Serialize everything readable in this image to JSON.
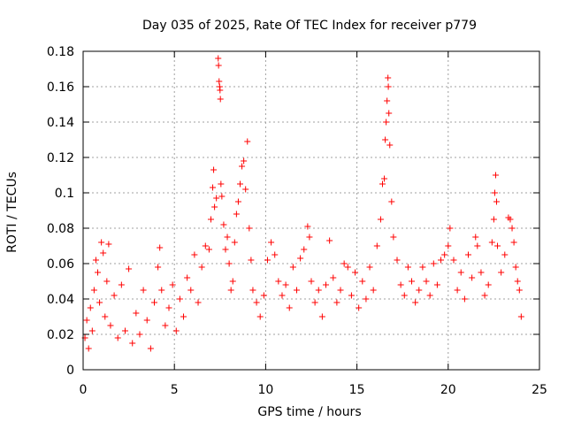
{
  "chart_data": {
    "type": "scatter",
    "title": "Day 035 of 2025, Rate Of TEC Index for receiver p779",
    "xlabel": "GPS time / hours",
    "ylabel": "ROTI / TECUs",
    "xlim": [
      0,
      25
    ],
    "ylim": [
      0,
      0.18
    ],
    "x_ticks": [
      0,
      5,
      10,
      15,
      20,
      25
    ],
    "x_tick_labels": [
      "0",
      "5",
      "10",
      "15",
      "20",
      "25"
    ],
    "y_ticks": [
      0,
      0.02,
      0.04,
      0.06,
      0.08,
      0.1,
      0.12,
      0.14,
      0.16,
      0.18
    ],
    "y_tick_labels": [
      "0",
      "0.02",
      "0.04",
      "0.06",
      "0.08",
      "0.1",
      "0.12",
      "0.14",
      "0.16",
      "0.18"
    ],
    "grid": true,
    "marker": "+",
    "marker_color": "#ff0000",
    "series": [
      {
        "name": "ROTI",
        "points": [
          [
            0.1,
            0.018
          ],
          [
            0.2,
            0.028
          ],
          [
            0.3,
            0.012
          ],
          [
            0.4,
            0.035
          ],
          [
            0.5,
            0.022
          ],
          [
            0.6,
            0.045
          ],
          [
            0.7,
            0.062
          ],
          [
            0.8,
            0.055
          ],
          [
            0.9,
            0.038
          ],
          [
            1.0,
            0.072
          ],
          [
            1.1,
            0.066
          ],
          [
            1.2,
            0.03
          ],
          [
            1.3,
            0.05
          ],
          [
            1.4,
            0.071
          ],
          [
            1.5,
            0.025
          ],
          [
            1.7,
            0.042
          ],
          [
            1.9,
            0.018
          ],
          [
            2.1,
            0.048
          ],
          [
            2.3,
            0.022
          ],
          [
            2.5,
            0.057
          ],
          [
            2.7,
            0.015
          ],
          [
            2.9,
            0.032
          ],
          [
            3.1,
            0.02
          ],
          [
            3.3,
            0.045
          ],
          [
            3.5,
            0.028
          ],
          [
            3.7,
            0.012
          ],
          [
            3.9,
            0.038
          ],
          [
            4.1,
            0.058
          ],
          [
            4.2,
            0.069
          ],
          [
            4.3,
            0.045
          ],
          [
            4.5,
            0.025
          ],
          [
            4.7,
            0.035
          ],
          [
            4.9,
            0.048
          ],
          [
            5.1,
            0.022
          ],
          [
            5.3,
            0.04
          ],
          [
            5.5,
            0.03
          ],
          [
            5.7,
            0.052
          ],
          [
            5.9,
            0.045
          ],
          [
            6.1,
            0.065
          ],
          [
            6.3,
            0.038
          ],
          [
            6.5,
            0.058
          ],
          [
            6.7,
            0.07
          ],
          [
            6.9,
            0.068
          ],
          [
            7.0,
            0.085
          ],
          [
            7.1,
            0.103
          ],
          [
            7.15,
            0.113
          ],
          [
            7.2,
            0.092
          ],
          [
            7.3,
            0.097
          ],
          [
            7.4,
            0.176
          ],
          [
            7.42,
            0.172
          ],
          [
            7.45,
            0.163
          ],
          [
            7.48,
            0.16
          ],
          [
            7.5,
            0.158
          ],
          [
            7.52,
            0.153
          ],
          [
            7.55,
            0.105
          ],
          [
            7.6,
            0.098
          ],
          [
            7.7,
            0.082
          ],
          [
            7.8,
            0.068
          ],
          [
            7.9,
            0.075
          ],
          [
            8.0,
            0.06
          ],
          [
            8.1,
            0.045
          ],
          [
            8.2,
            0.05
          ],
          [
            8.3,
            0.072
          ],
          [
            8.4,
            0.088
          ],
          [
            8.5,
            0.095
          ],
          [
            8.6,
            0.105
          ],
          [
            8.7,
            0.115
          ],
          [
            8.8,
            0.118
          ],
          [
            8.9,
            0.102
          ],
          [
            9.0,
            0.129
          ],
          [
            9.1,
            0.08
          ],
          [
            9.2,
            0.062
          ],
          [
            9.3,
            0.045
          ],
          [
            9.5,
            0.038
          ],
          [
            9.7,
            0.03
          ],
          [
            9.9,
            0.042
          ],
          [
            10.1,
            0.062
          ],
          [
            10.3,
            0.072
          ],
          [
            10.5,
            0.065
          ],
          [
            10.7,
            0.05
          ],
          [
            10.9,
            0.042
          ],
          [
            11.1,
            0.048
          ],
          [
            11.3,
            0.035
          ],
          [
            11.5,
            0.058
          ],
          [
            11.7,
            0.045
          ],
          [
            11.9,
            0.063
          ],
          [
            12.1,
            0.068
          ],
          [
            12.3,
            0.081
          ],
          [
            12.4,
            0.075
          ],
          [
            12.5,
            0.05
          ],
          [
            12.7,
            0.038
          ],
          [
            12.9,
            0.045
          ],
          [
            13.1,
            0.03
          ],
          [
            13.3,
            0.048
          ],
          [
            13.5,
            0.073
          ],
          [
            13.7,
            0.052
          ],
          [
            13.9,
            0.038
          ],
          [
            14.1,
            0.045
          ],
          [
            14.3,
            0.06
          ],
          [
            14.5,
            0.058
          ],
          [
            14.7,
            0.042
          ],
          [
            14.9,
            0.055
          ],
          [
            15.1,
            0.035
          ],
          [
            15.3,
            0.05
          ],
          [
            15.5,
            0.04
          ],
          [
            15.7,
            0.058
          ],
          [
            15.9,
            0.045
          ],
          [
            16.1,
            0.07
          ],
          [
            16.3,
            0.085
          ],
          [
            16.4,
            0.105
          ],
          [
            16.5,
            0.108
          ],
          [
            16.55,
            0.13
          ],
          [
            16.6,
            0.14
          ],
          [
            16.65,
            0.152
          ],
          [
            16.7,
            0.165
          ],
          [
            16.72,
            0.16
          ],
          [
            16.75,
            0.145
          ],
          [
            16.8,
            0.127
          ],
          [
            16.9,
            0.095
          ],
          [
            17.0,
            0.075
          ],
          [
            17.2,
            0.062
          ],
          [
            17.4,
            0.048
          ],
          [
            17.6,
            0.042
          ],
          [
            17.8,
            0.058
          ],
          [
            18.0,
            0.05
          ],
          [
            18.2,
            0.038
          ],
          [
            18.4,
            0.045
          ],
          [
            18.6,
            0.058
          ],
          [
            18.8,
            0.05
          ],
          [
            19.0,
            0.042
          ],
          [
            19.2,
            0.06
          ],
          [
            19.4,
            0.048
          ],
          [
            19.6,
            0.062
          ],
          [
            19.8,
            0.065
          ],
          [
            20.0,
            0.07
          ],
          [
            20.1,
            0.08
          ],
          [
            20.3,
            0.062
          ],
          [
            20.5,
            0.045
          ],
          [
            20.7,
            0.055
          ],
          [
            20.9,
            0.04
          ],
          [
            21.1,
            0.065
          ],
          [
            21.3,
            0.052
          ],
          [
            21.5,
            0.075
          ],
          [
            21.6,
            0.07
          ],
          [
            21.8,
            0.055
          ],
          [
            22.0,
            0.042
          ],
          [
            22.2,
            0.048
          ],
          [
            22.4,
            0.072
          ],
          [
            22.5,
            0.085
          ],
          [
            22.55,
            0.1
          ],
          [
            22.6,
            0.11
          ],
          [
            22.65,
            0.095
          ],
          [
            22.7,
            0.07
          ],
          [
            22.9,
            0.055
          ],
          [
            23.1,
            0.065
          ],
          [
            23.3,
            0.086
          ],
          [
            23.4,
            0.085
          ],
          [
            23.5,
            0.08
          ],
          [
            23.6,
            0.072
          ],
          [
            23.7,
            0.058
          ],
          [
            23.8,
            0.05
          ],
          [
            23.9,
            0.045
          ],
          [
            24.0,
            0.03
          ]
        ]
      }
    ]
  }
}
